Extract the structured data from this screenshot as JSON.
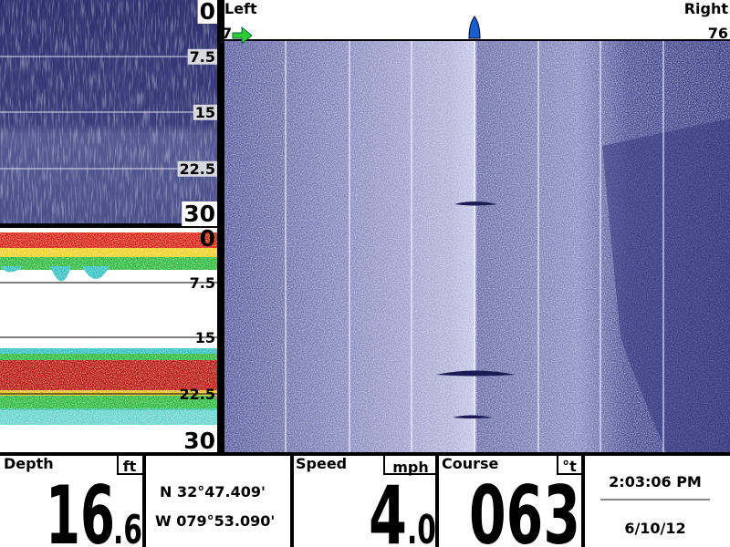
{
  "top_pane": {
    "scale": [
      "0",
      "7.5",
      "15",
      "22.5",
      "30"
    ]
  },
  "sonar_pane": {
    "scale": [
      "0",
      "7.5",
      "15",
      "22.5",
      "30"
    ]
  },
  "side_header": {
    "left_label": "Left",
    "right_label": "Right",
    "left_range": "7",
    "right_range": "76"
  },
  "status_bar": {
    "depth": {
      "label": "Depth",
      "unit": "ft",
      "whole": "16",
      "fraction": ".6"
    },
    "position": {
      "lat": "N 32°47.409'",
      "lon": "W 079°53.090'"
    },
    "speed": {
      "label": "Speed",
      "unit": "mph",
      "whole": "4",
      "fraction": ".0"
    },
    "course": {
      "label": "Course",
      "unit": "°t",
      "value": "063"
    },
    "clock": {
      "time": "2:03:06 PM",
      "date": "6/10/12"
    }
  }
}
